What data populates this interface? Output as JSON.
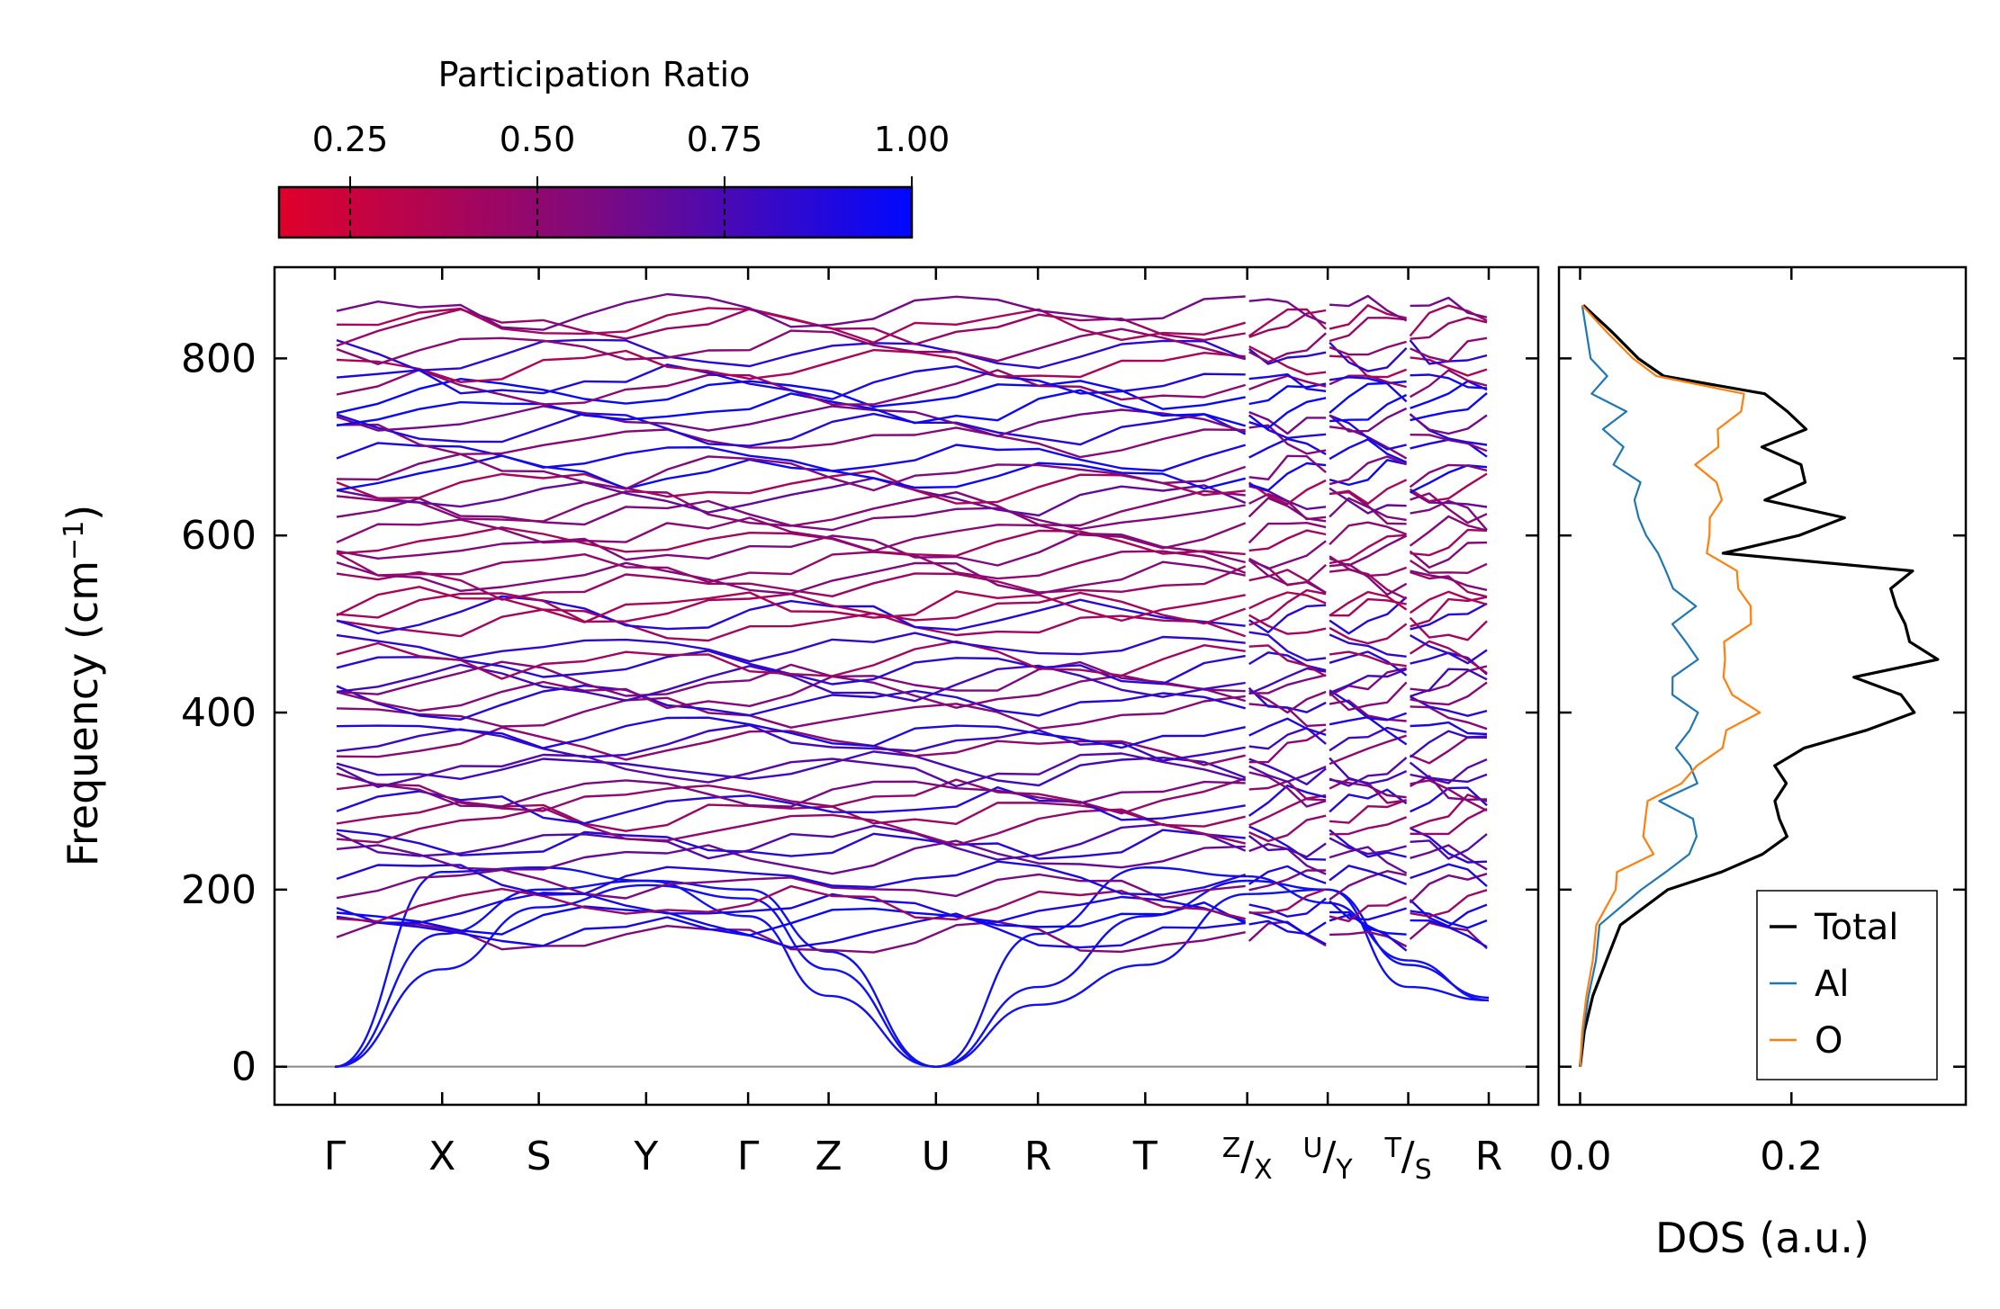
{
  "chart_data": [
    {
      "type": "line",
      "name": "phonon-band-structure",
      "ylabel": "Frequency (cm",
      "ylabel_sup": "−1",
      "ylabel_end": ")",
      "ylim": [
        -43,
        903
      ],
      "yticks": [
        "0",
        "200",
        "400",
        "600",
        "800"
      ],
      "ytick_values": [
        0,
        200,
        400,
        600,
        800
      ],
      "high_symmetry_points": [
        {
          "label": "Γ",
          "pos": 0.0
        },
        {
          "label": "X",
          "pos": 1.0
        },
        {
          "label": "S",
          "pos": 1.9
        },
        {
          "label": "Y",
          "pos": 2.9
        },
        {
          "label": "Γ",
          "pos": 3.85
        },
        {
          "label": "Z",
          "pos": 4.6
        },
        {
          "label": "U",
          "pos": 5.6
        },
        {
          "label": "R",
          "pos": 6.55
        },
        {
          "label": "T",
          "pos": 7.55
        },
        {
          "label": "Z",
          "pos": 8.5,
          "composite": true,
          "sup": "Z",
          "sub": "X"
        },
        {
          "label": "U",
          "pos": 9.25,
          "composite": true,
          "sup": "U",
          "sub": "Y"
        },
        {
          "label": "T",
          "pos": 10.0,
          "composite": true,
          "sup": "T",
          "sub": "S"
        },
        {
          "label": "R",
          "pos": 10.75
        }
      ],
      "path_segments": [
        [
          0.0,
          8.5
        ],
        [
          8.5,
          9.25
        ],
        [
          9.25,
          10.0
        ],
        [
          10.0,
          10.75
        ]
      ],
      "zero_line": 0,
      "colorbar": {
        "title": "Participation Ratio",
        "ticks": [
          "0.25",
          "0.50",
          "0.75",
          "1.00"
        ],
        "tick_values": [
          0.25,
          0.5,
          0.75,
          1.0
        ],
        "range": [
          0.155,
          1.0
        ],
        "color_low": "#e0002a",
        "color_high": "#0008ff"
      },
      "acoustic_branches": [
        {
          "values": [
            0,
            110,
            180,
            205,
            190,
            110,
            0,
            70,
            115,
            195,
            200,
            90,
            75
          ]
        },
        {
          "values": [
            0,
            150,
            200,
            210,
            170,
            80,
            0,
            90,
            170,
            210,
            200,
            115,
            78
          ]
        },
        {
          "values": [
            0,
            220,
            225,
            210,
            200,
            130,
            0,
            150,
            225,
            215,
            185,
            120,
            75
          ]
        }
      ],
      "optical_band_range": [
        135,
        860
      ],
      "num_optical_bands_shown": 58
    },
    {
      "type": "line",
      "name": "phonon-dos",
      "xlabel": "DOS (a.u.)",
      "xticks": [
        "0.0",
        "0.2"
      ],
      "xtick_values": [
        0.0,
        0.2
      ],
      "xlim": [
        -0.02,
        0.365
      ],
      "ylim": [
        -43,
        903
      ],
      "legend_position": "lower-right",
      "series": [
        {
          "name": "Total",
          "color": "#000000",
          "freq": [
            0,
            40,
            80,
            120,
            160,
            200,
            220,
            240,
            260,
            280,
            300,
            320,
            340,
            360,
            380,
            400,
            420,
            440,
            460,
            480,
            500,
            520,
            540,
            560,
            580,
            600,
            620,
            640,
            660,
            680,
            700,
            720,
            740,
            760,
            780,
            800,
            830,
            860
          ],
          "values": [
            0.0,
            0.004,
            0.012,
            0.025,
            0.045,
            0.095,
            0.12,
            0.17,
            0.2,
            0.18,
            0.17,
            0.21,
            0.19,
            0.22,
            0.26,
            0.33,
            0.29,
            0.27,
            0.35,
            0.3,
            0.32,
            0.31,
            0.28,
            0.3,
            0.15,
            0.2,
            0.24,
            0.18,
            0.22,
            0.2,
            0.18,
            0.2,
            0.19,
            0.18,
            0.09,
            0.055,
            0.03,
            0.003
          ]
        },
        {
          "name": "Al",
          "color": "#1f77b4",
          "freq": [
            0,
            40,
            80,
            120,
            160,
            200,
            220,
            240,
            260,
            280,
            300,
            320,
            340,
            360,
            380,
            400,
            420,
            440,
            460,
            480,
            500,
            520,
            540,
            560,
            580,
            600,
            620,
            640,
            660,
            680,
            700,
            720,
            740,
            760,
            780,
            800,
            830,
            860
          ],
          "values": [
            0.0,
            0.003,
            0.008,
            0.015,
            0.03,
            0.06,
            0.07,
            0.09,
            0.11,
            0.1,
            0.085,
            0.1,
            0.09,
            0.09,
            0.095,
            0.11,
            0.1,
            0.1,
            0.11,
            0.1,
            0.095,
            0.1,
            0.08,
            0.075,
            0.065,
            0.055,
            0.06,
            0.05,
            0.045,
            0.04,
            0.035,
            0.025,
            0.03,
            0.02,
            0.015,
            0.01,
            0.006,
            0.002
          ]
        },
        {
          "name": "O",
          "color": "#ff7f0e",
          "freq": [
            0,
            40,
            80,
            120,
            160,
            200,
            220,
            240,
            260,
            280,
            300,
            320,
            340,
            360,
            380,
            400,
            420,
            440,
            460,
            480,
            500,
            520,
            540,
            560,
            580,
            600,
            620,
            640,
            660,
            680,
            700,
            720,
            740,
            760,
            780,
            800,
            830,
            860
          ],
          "values": [
            0.0,
            0.002,
            0.006,
            0.012,
            0.02,
            0.04,
            0.045,
            0.055,
            0.06,
            0.065,
            0.075,
            0.1,
            0.11,
            0.12,
            0.15,
            0.17,
            0.14,
            0.13,
            0.15,
            0.13,
            0.16,
            0.15,
            0.14,
            0.15,
            0.12,
            0.13,
            0.13,
            0.12,
            0.13,
            0.12,
            0.13,
            0.12,
            0.14,
            0.16,
            0.08,
            0.05,
            0.025,
            0.002
          ]
        }
      ]
    }
  ]
}
